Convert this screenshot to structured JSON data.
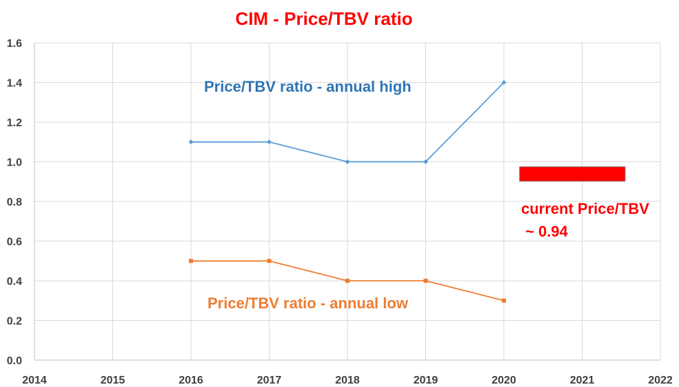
{
  "chart_data": {
    "type": "line",
    "title": "CIM - Price/TBV ratio",
    "title_color": "#FF0000",
    "xlabel": "",
    "ylabel": "",
    "xlim": [
      2014,
      2022
    ],
    "ylim": [
      0,
      1.6
    ],
    "x_ticks": [
      "2014",
      "2015",
      "2016",
      "2017",
      "2018",
      "2019",
      "2020",
      "2021",
      "2022"
    ],
    "y_ticks": [
      "0.0",
      "0.2",
      "0.4",
      "0.6",
      "0.8",
      "1.0",
      "1.2",
      "1.4",
      "1.6"
    ],
    "grid": true,
    "series": [
      {
        "name": "Price/TBV ratio - annual high",
        "color": "#5B9BD5",
        "label_color": "#2E75B6",
        "marker": "diamond",
        "x": [
          2016,
          2017,
          2018,
          2019,
          2020
        ],
        "y": [
          1.1,
          1.1,
          1.0,
          1.0,
          1.4
        ]
      },
      {
        "name": "Price/TBV ratio - annual low",
        "color": "#ED7D31",
        "label_color": "#ED7D31",
        "marker": "square",
        "x": [
          2016,
          2017,
          2018,
          2019,
          2020
        ],
        "y": [
          0.5,
          0.5,
          0.4,
          0.4,
          0.3
        ]
      }
    ],
    "annotation": {
      "lines": [
        "current Price/TBV",
        "~ 0.94"
      ],
      "color": "#FF0000",
      "value": 0.94,
      "x_range": [
        2020.2,
        2021.55
      ]
    }
  }
}
